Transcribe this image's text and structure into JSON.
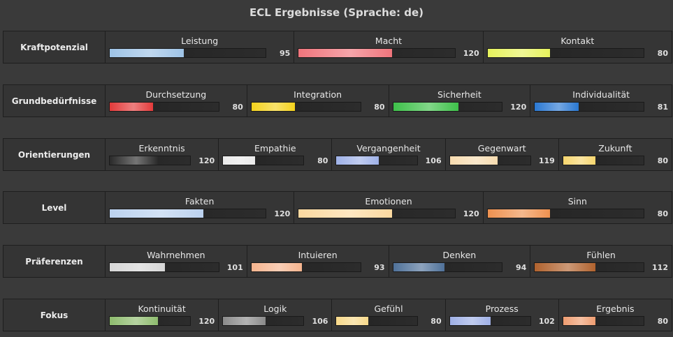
{
  "title": "ECL Ergebnisse (Sprache: de)",
  "rows": [
    {
      "label": "Kraftpotenzial",
      "items": [
        {
          "label": "Leistung",
          "value": 95,
          "max": 200,
          "color": "#9ec3e6"
        },
        {
          "label": "Macht",
          "value": 120,
          "max": 200,
          "color": "#f0757c"
        },
        {
          "label": "Kontakt",
          "value": 80,
          "max": 200,
          "color": "#e6f25c"
        }
      ]
    },
    {
      "label": "Grundbedürfnisse",
      "items": [
        {
          "label": "Durchsetzung",
          "value": 80,
          "max": 200,
          "color": "#e33a3a"
        },
        {
          "label": "Integration",
          "value": 80,
          "max": 200,
          "color": "#f4d21c"
        },
        {
          "label": "Sicherheit",
          "value": 120,
          "max": 200,
          "color": "#3ec14a"
        },
        {
          "label": "Individualität",
          "value": 81,
          "max": 200,
          "color": "#2a78d2"
        }
      ]
    },
    {
      "label": "Orientierungen",
      "items": [
        {
          "label": "Erkenntnis",
          "value": 120,
          "max": 200,
          "color": "#2a2a2a"
        },
        {
          "label": "Empathie",
          "value": 80,
          "max": 200,
          "color": "#eaeaea"
        },
        {
          "label": "Vergangenheit",
          "value": 106,
          "max": 200,
          "color": "#9fb2e8"
        },
        {
          "label": "Gegenwart",
          "value": 119,
          "max": 200,
          "color": "#f8dcb0"
        },
        {
          "label": "Zukunft",
          "value": 80,
          "max": 200,
          "color": "#f7d66e"
        }
      ]
    },
    {
      "label": "Level",
      "items": [
        {
          "label": "Fakten",
          "value": 120,
          "max": 200,
          "color": "#bcd2ef"
        },
        {
          "label": "Emotionen",
          "value": 120,
          "max": 200,
          "color": "#fcd9a0"
        },
        {
          "label": "Sinn",
          "value": 80,
          "max": 200,
          "color": "#ee9150"
        }
      ]
    },
    {
      "label": "Präferenzen",
      "items": [
        {
          "label": "Wahrnehmen",
          "value": 101,
          "max": 200,
          "color": "#d6d6d6"
        },
        {
          "label": "Intuieren",
          "value": 93,
          "max": 200,
          "color": "#f6b48e"
        },
        {
          "label": "Denken",
          "value": 94,
          "max": 200,
          "color": "#4f7199"
        },
        {
          "label": "Fühlen",
          "value": 112,
          "max": 200,
          "color": "#b0622e"
        }
      ]
    },
    {
      "label": "Fokus",
      "items": [
        {
          "label": "Kontinuität",
          "value": 120,
          "max": 200,
          "color": "#8ebc6e"
        },
        {
          "label": "Logik",
          "value": 106,
          "max": 200,
          "color": "#8a8a8a"
        },
        {
          "label": "Gefühl",
          "value": 80,
          "max": 200,
          "color": "#f8d98a"
        },
        {
          "label": "Prozess",
          "value": 102,
          "max": 200,
          "color": "#9fb0e6"
        },
        {
          "label": "Ergebnis",
          "value": 80,
          "max": 200,
          "color": "#ee9c70"
        }
      ]
    }
  ]
}
